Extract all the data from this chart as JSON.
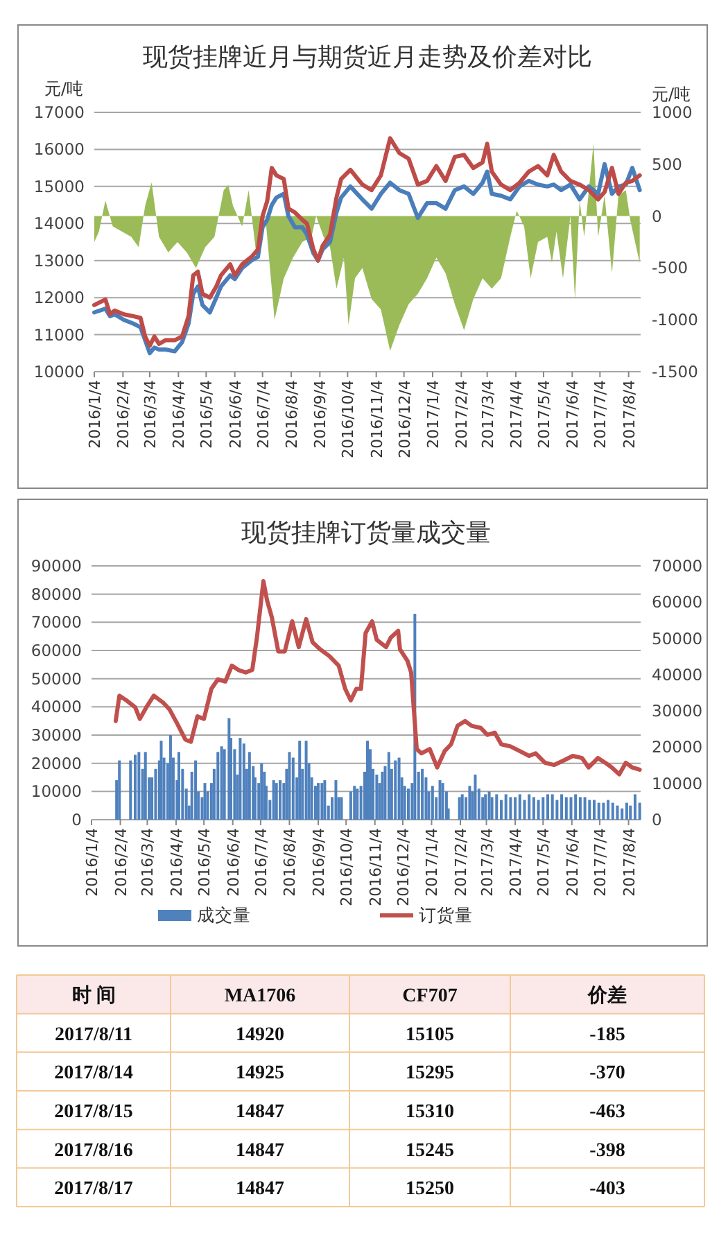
{
  "chart_data": [
    {
      "type": "line",
      "title": "现货挂牌近月与期货近月走势及价差对比",
      "ylabel": "元/吨",
      "y2label": "元/吨",
      "xlim": [
        "2016-01-04",
        "2017-08-17"
      ],
      "xticks": [
        {
          "value": "2016-01-04",
          "label": "2016/1/4"
        },
        {
          "value": "2016-02-04",
          "label": "2016/2/4"
        },
        {
          "value": "2016-03-04",
          "label": "2016/3/4"
        },
        {
          "value": "2016-04-04",
          "label": "2016/4/4"
        },
        {
          "value": "2016-05-04",
          "label": "2016/5/4"
        },
        {
          "value": "2016-06-04",
          "label": "2016/6/4"
        },
        {
          "value": "2016-07-04",
          "label": "2016/7/4"
        },
        {
          "value": "2016-08-04",
          "label": "2016/8/4"
        },
        {
          "value": "2016-09-04",
          "label": "2016/9/4"
        },
        {
          "value": "2016-10-04",
          "label": "2016/10/4"
        },
        {
          "value": "2016-11-04",
          "label": "2016/11/4"
        },
        {
          "value": "2016-12-04",
          "label": "2016/12/4"
        },
        {
          "value": "2017-01-04",
          "label": "2017/1/4"
        },
        {
          "value": "2017-02-04",
          "label": "2017/2/4"
        },
        {
          "value": "2017-03-04",
          "label": "2017/3/4"
        },
        {
          "value": "2017-04-04",
          "label": "2017/4/4"
        },
        {
          "value": "2017-05-04",
          "label": "2017/5/4"
        },
        {
          "value": "2017-06-04",
          "label": "2017/6/4"
        },
        {
          "value": "2017-07-04",
          "label": "2017/7/4"
        },
        {
          "value": "2017-08-04",
          "label": "2017/8/4"
        }
      ],
      "ylim": [
        10000,
        17000
      ],
      "yticks": [
        10000,
        11000,
        12000,
        13000,
        14000,
        15000,
        16000,
        17000
      ],
      "y2lim": [
        -1500,
        1000
      ],
      "y2ticks": [
        -1500,
        -1000,
        -500,
        0,
        500,
        1000
      ],
      "grid": "y",
      "series": [
        {
          "type": "area",
          "axis": "y2",
          "color": "#9bbb59",
          "x": [
            "2016-01-04",
            "2016-01-09",
            "2016-01-16",
            "2016-01-24",
            "2016-02-03",
            "2016-02-13",
            "2016-02-21",
            "2016-02-28",
            "2016-03-06",
            "2016-03-14",
            "2016-03-24",
            "2016-04-03",
            "2016-04-13",
            "2016-04-23",
            "2016-05-03",
            "2016-05-13",
            "2016-05-23",
            "2016-05-28",
            "2016-06-02",
            "2016-06-12",
            "2016-06-19",
            "2016-06-27",
            "2016-07-07",
            "2016-07-17",
            "2016-07-27",
            "2016-08-06",
            "2016-08-16",
            "2016-08-26",
            "2016-08-31",
            "2016-09-08",
            "2016-09-15",
            "2016-09-22",
            "2016-09-30",
            "2016-10-05",
            "2016-10-12",
            "2016-10-20",
            "2016-10-30",
            "2016-11-09",
            "2016-11-19",
            "2016-11-29",
            "2016-12-09",
            "2016-12-19",
            "2016-12-29",
            "2017-01-08",
            "2017-01-18",
            "2017-01-28",
            "2017-02-07",
            "2017-02-17",
            "2017-02-27",
            "2017-03-09",
            "2017-03-19",
            "2017-03-29",
            "2017-04-05",
            "2017-04-13",
            "2017-04-20",
            "2017-04-28",
            "2017-05-08",
            "2017-05-13",
            "2017-05-18",
            "2017-05-25",
            "2017-06-02",
            "2017-06-07",
            "2017-06-12",
            "2017-06-17",
            "2017-06-27",
            "2017-07-02",
            "2017-07-09",
            "2017-07-17",
            "2017-07-24",
            "2017-08-01",
            "2017-08-06",
            "2017-08-16"
          ],
          "values": [
            -250,
            -150,
            150,
            -100,
            -150,
            -200,
            -300,
            100,
            325,
            -200,
            -350,
            -250,
            -350,
            -500,
            -300,
            -200,
            250,
            300,
            100,
            -100,
            250,
            -350,
            0,
            -1000,
            -600,
            -400,
            -250,
            -200,
            0,
            -200,
            -300,
            -700,
            -400,
            -1050,
            -600,
            -500,
            -800,
            -900,
            -1300,
            -1050,
            -850,
            -750,
            -600,
            -400,
            -550,
            -850,
            -1100,
            -800,
            -600,
            -700,
            -600,
            -200,
            50,
            -100,
            -600,
            -250,
            -200,
            -450,
            -150,
            -600,
            0,
            -800,
            150,
            -200,
            700,
            -200,
            200,
            -550,
            200,
            250,
            -50,
            -450
          ]
        },
        {
          "color": "#4a7ebb",
          "x": [
            "2016-01-04",
            "2016-01-16",
            "2016-01-21",
            "2016-01-26",
            "2016-02-05",
            "2016-02-15",
            "2016-02-23",
            "2016-02-28",
            "2016-03-04",
            "2016-03-09",
            "2016-03-14",
            "2016-03-21",
            "2016-03-31",
            "2016-04-08",
            "2016-04-15",
            "2016-04-20",
            "2016-04-25",
            "2016-04-30",
            "2016-05-08",
            "2016-05-15",
            "2016-05-20",
            "2016-05-30",
            "2016-06-04",
            "2016-06-12",
            "2016-06-22",
            "2016-06-29",
            "2016-07-04",
            "2016-07-09",
            "2016-07-14",
            "2016-07-19",
            "2016-07-27",
            "2016-08-01",
            "2016-08-08",
            "2016-08-16",
            "2016-08-21",
            "2016-08-28",
            "2016-09-02",
            "2016-09-07",
            "2016-09-15",
            "2016-09-22",
            "2016-09-27",
            "2016-10-07",
            "2016-10-20",
            "2016-10-30",
            "2016-11-09",
            "2016-11-19",
            "2016-11-29",
            "2016-12-09",
            "2016-12-19",
            "2016-12-29",
            "2017-01-08",
            "2017-01-18",
            "2017-01-28",
            "2017-02-07",
            "2017-02-17",
            "2017-02-27",
            "2017-03-04",
            "2017-03-09",
            "2017-03-19",
            "2017-03-29",
            "2017-04-08",
            "2017-04-18",
            "2017-04-28",
            "2017-05-08",
            "2017-05-15",
            "2017-05-23",
            "2017-06-02",
            "2017-06-12",
            "2017-06-22",
            "2017-07-02",
            "2017-07-09",
            "2017-07-17",
            "2017-07-24",
            "2017-08-01",
            "2017-08-08",
            "2017-08-16"
          ],
          "values": [
            11600,
            11700,
            11500,
            11550,
            11400,
            11300,
            11200,
            10850,
            10500,
            10650,
            10600,
            10600,
            10550,
            10800,
            11300,
            12100,
            12300,
            11800,
            11600,
            12000,
            12300,
            12600,
            12500,
            12800,
            13000,
            13100,
            13900,
            14100,
            14500,
            14700,
            14800,
            14200,
            13900,
            13900,
            13700,
            13200,
            13000,
            13300,
            13500,
            14300,
            14700,
            15000,
            14650,
            14400,
            14800,
            15100,
            14900,
            14800,
            14150,
            14550,
            14550,
            14400,
            14900,
            15000,
            14800,
            15100,
            15400,
            14800,
            14750,
            14650,
            15000,
            15150,
            15050,
            15000,
            15050,
            14900,
            15050,
            14650,
            15000,
            14800,
            15600,
            14800,
            15000,
            15050,
            15500,
            14900
          ]
        },
        {
          "color": "#be4b48",
          "x": [
            "2016-01-04",
            "2016-01-16",
            "2016-01-21",
            "2016-01-26",
            "2016-02-05",
            "2016-02-15",
            "2016-02-23",
            "2016-02-28",
            "2016-03-04",
            "2016-03-09",
            "2016-03-14",
            "2016-03-21",
            "2016-03-31",
            "2016-04-08",
            "2016-04-15",
            "2016-04-20",
            "2016-04-25",
            "2016-04-30",
            "2016-05-08",
            "2016-05-15",
            "2016-05-20",
            "2016-05-30",
            "2016-06-04",
            "2016-06-12",
            "2016-06-22",
            "2016-06-29",
            "2016-07-04",
            "2016-07-09",
            "2016-07-14",
            "2016-07-19",
            "2016-07-27",
            "2016-08-01",
            "2016-08-08",
            "2016-08-16",
            "2016-08-21",
            "2016-08-28",
            "2016-09-02",
            "2016-09-07",
            "2016-09-15",
            "2016-09-22",
            "2016-09-27",
            "2016-10-07",
            "2016-10-20",
            "2016-10-30",
            "2016-11-09",
            "2016-11-19",
            "2016-11-29",
            "2016-12-09",
            "2016-12-19",
            "2016-12-29",
            "2017-01-08",
            "2017-01-18",
            "2017-01-28",
            "2017-02-07",
            "2017-02-17",
            "2017-02-27",
            "2017-03-04",
            "2017-03-09",
            "2017-03-19",
            "2017-03-29",
            "2017-04-08",
            "2017-04-18",
            "2017-04-28",
            "2017-05-08",
            "2017-05-15",
            "2017-05-23",
            "2017-06-02",
            "2017-06-12",
            "2017-06-22",
            "2017-07-02",
            "2017-07-09",
            "2017-07-17",
            "2017-07-24",
            "2017-08-01",
            "2017-08-08",
            "2017-08-16"
          ],
          "values": [
            11800,
            11950,
            11550,
            11650,
            11550,
            11500,
            11450,
            10950,
            10700,
            10950,
            10750,
            10850,
            10850,
            10950,
            11500,
            12600,
            12700,
            12100,
            12000,
            12300,
            12600,
            12900,
            12600,
            12900,
            13100,
            13300,
            14200,
            14600,
            15500,
            15300,
            15200,
            14400,
            14300,
            14100,
            14000,
            13300,
            13000,
            13400,
            13700,
            14700,
            15200,
            15450,
            15050,
            14900,
            15300,
            16300,
            15900,
            15750,
            15050,
            15150,
            15550,
            15150,
            15800,
            15850,
            15500,
            15650,
            16150,
            15400,
            15050,
            14900,
            15100,
            15400,
            15550,
            15300,
            15850,
            15400,
            15150,
            15050,
            14900,
            14650,
            14850,
            15500,
            14800,
            15100,
            15150,
            15300
          ]
        }
      ]
    },
    {
      "type": "bar",
      "title": "现货挂牌订货量成交量",
      "xlim": [
        "2016-01-04",
        "2017-08-17"
      ],
      "xticks": [
        {
          "value": "2016-01-04",
          "label": "2016/1/4"
        },
        {
          "value": "2016-02-04",
          "label": "2016/2/4"
        },
        {
          "value": "2016-03-04",
          "label": "2016/3/4"
        },
        {
          "value": "2016-04-04",
          "label": "2016/4/4"
        },
        {
          "value": "2016-05-04",
          "label": "2016/5/4"
        },
        {
          "value": "2016-06-04",
          "label": "2016/6/4"
        },
        {
          "value": "2016-07-04",
          "label": "2016/7/4"
        },
        {
          "value": "2016-08-04",
          "label": "2016/8/4"
        },
        {
          "value": "2016-09-04",
          "label": "2016/9/4"
        },
        {
          "value": "2016-10-04",
          "label": "2016/10/4"
        },
        {
          "value": "2016-11-04",
          "label": "2016/11/4"
        },
        {
          "value": "2016-12-04",
          "label": "2016/12/4"
        },
        {
          "value": "2017-01-04",
          "label": "2017/1/4"
        },
        {
          "value": "2017-02-04",
          "label": "2017/2/4"
        },
        {
          "value": "2017-03-04",
          "label": "2017/3/4"
        },
        {
          "value": "2017-04-04",
          "label": "2017/4/4"
        },
        {
          "value": "2017-05-04",
          "label": "2017/5/4"
        },
        {
          "value": "2017-06-04",
          "label": "2017/6/4"
        },
        {
          "value": "2017-07-04",
          "label": "2017/7/4"
        },
        {
          "value": "2017-08-04",
          "label": "2017/8/4"
        }
      ],
      "ylim": [
        0,
        90000
      ],
      "yticks": [
        0,
        10000,
        20000,
        30000,
        40000,
        50000,
        60000,
        70000,
        80000,
        90000
      ],
      "y2lim": [
        0,
        70000
      ],
      "y2ticks": [
        0,
        10000,
        20000,
        30000,
        40000,
        50000,
        60000,
        70000
      ],
      "grid": "y",
      "legend": "bottom",
      "series": [
        {
          "name": "成交量",
          "type": "bar",
          "color": "#4f81bd",
          "x": [
            "2016-01-31",
            "2016-02-03",
            "2016-02-15",
            "2016-02-20",
            "2016-02-24",
            "2016-02-28",
            "2016-03-02",
            "2016-03-06",
            "2016-03-09",
            "2016-03-13",
            "2016-03-17",
            "2016-03-19",
            "2016-03-22",
            "2016-03-26",
            "2016-03-29",
            "2016-04-01",
            "2016-04-05",
            "2016-04-07",
            "2016-04-11",
            "2016-04-15",
            "2016-04-18",
            "2016-04-21",
            "2016-04-25",
            "2016-04-28",
            "2016-05-02",
            "2016-05-05",
            "2016-05-08",
            "2016-05-12",
            "2016-05-15",
            "2016-05-19",
            "2016-05-23",
            "2016-05-26",
            "2016-05-31",
            "2016-06-02",
            "2016-06-06",
            "2016-06-09",
            "2016-06-12",
            "2016-06-16",
            "2016-06-19",
            "2016-06-22",
            "2016-06-26",
            "2016-06-28",
            "2016-07-02",
            "2016-07-05",
            "2016-07-08",
            "2016-07-10",
            "2016-07-14",
            "2016-07-18",
            "2016-07-21",
            "2016-07-25",
            "2016-07-29",
            "2016-08-01",
            "2016-08-04",
            "2016-08-08",
            "2016-08-12",
            "2016-08-15",
            "2016-08-18",
            "2016-08-22",
            "2016-08-25",
            "2016-08-28",
            "2016-09-01",
            "2016-09-04",
            "2016-09-08",
            "2016-09-11",
            "2016-09-15",
            "2016-09-19",
            "2016-09-23",
            "2016-09-26",
            "2016-09-29",
            "2016-10-09",
            "2016-10-13",
            "2016-10-16",
            "2016-10-20",
            "2016-10-24",
            "2016-10-27",
            "2016-10-30",
            "2016-11-02",
            "2016-11-06",
            "2016-11-09",
            "2016-11-12",
            "2016-11-15",
            "2016-11-19",
            "2016-11-22",
            "2016-11-26",
            "2016-11-30",
            "2016-12-03",
            "2016-12-06",
            "2016-12-10",
            "2016-12-14",
            "2016-12-17",
            "2016-12-21",
            "2016-12-25",
            "2016-12-29",
            "2017-01-01",
            "2017-01-05",
            "2017-01-09",
            "2017-01-13",
            "2017-01-16",
            "2017-01-20",
            "2017-01-22",
            "2017-02-03",
            "2017-02-06",
            "2017-02-10",
            "2017-02-14",
            "2017-02-17",
            "2017-02-20",
            "2017-02-24",
            "2017-02-28",
            "2017-03-03",
            "2017-03-07",
            "2017-03-10",
            "2017-03-15",
            "2017-03-20",
            "2017-03-25",
            "2017-03-30",
            "2017-04-04",
            "2017-04-09",
            "2017-04-14",
            "2017-04-19",
            "2017-04-24",
            "2017-04-29",
            "2017-05-04",
            "2017-05-09",
            "2017-05-14",
            "2017-05-19",
            "2017-05-24",
            "2017-05-29",
            "2017-06-03",
            "2017-06-08",
            "2017-06-13",
            "2017-06-18",
            "2017-06-23",
            "2017-06-28",
            "2017-07-03",
            "2017-07-08",
            "2017-07-13",
            "2017-07-18",
            "2017-07-23",
            "2017-07-28",
            "2017-08-02",
            "2017-08-06",
            "2017-08-11",
            "2017-08-16"
          ],
          "values": [
            14000,
            21000,
            21000,
            23000,
            24000,
            18000,
            24000,
            15000,
            15000,
            18000,
            21000,
            28000,
            22000,
            20000,
            30000,
            22000,
            14000,
            24000,
            18000,
            11000,
            5000,
            17000,
            21000,
            10000,
            8000,
            13000,
            10000,
            13000,
            18000,
            24000,
            26000,
            25000,
            36000,
            29000,
            25000,
            16000,
            29000,
            27000,
            18000,
            24000,
            19000,
            15000,
            13000,
            20000,
            17000,
            12000,
            7000,
            14000,
            13000,
            14000,
            13000,
            18000,
            24000,
            22000,
            15000,
            28000,
            18000,
            28000,
            20000,
            15000,
            12000,
            13000,
            13000,
            14000,
            5000,
            8000,
            14000,
            8000,
            8000,
            10000,
            12000,
            11000,
            12000,
            17000,
            28000,
            25000,
            18000,
            16000,
            13000,
            17000,
            19000,
            24000,
            18000,
            21000,
            22000,
            15000,
            12000,
            11000,
            13000,
            73000,
            17000,
            18000,
            15000,
            10000,
            12000,
            8000,
            14000,
            13000,
            10000,
            4000,
            8000,
            9000,
            8000,
            12000,
            10000,
            16000,
            11000,
            8000,
            9000,
            10000,
            8000,
            9000,
            7000,
            9000,
            8000,
            8000,
            9000,
            7000,
            9000,
            8000,
            7000,
            8000,
            9000,
            9000,
            7000,
            9000,
            8000,
            8000,
            9000,
            8000,
            8000,
            7000,
            7000,
            6000,
            6000,
            7000,
            6000,
            5000,
            4000,
            6000,
            5000,
            9000,
            6000
          ]
        },
        {
          "name": "订货量",
          "type": "line",
          "axis": "y2",
          "color": "#c0504d",
          "x": [
            "2016-01-30",
            "2016-02-03",
            "2016-02-10",
            "2016-02-20",
            "2016-02-25",
            "2016-03-03",
            "2016-03-11",
            "2016-03-21",
            "2016-03-28",
            "2016-04-05",
            "2016-04-14",
            "2016-04-20",
            "2016-04-27",
            "2016-05-04",
            "2016-05-12",
            "2016-05-19",
            "2016-05-27",
            "2016-06-03",
            "2016-06-10",
            "2016-06-18",
            "2016-06-25",
            "2016-06-30",
            "2016-07-07",
            "2016-07-11",
            "2016-07-16",
            "2016-07-23",
            "2016-07-30",
            "2016-08-07",
            "2016-08-14",
            "2016-08-22",
            "2016-08-29",
            "2016-09-06",
            "2016-09-16",
            "2016-09-26",
            "2016-10-03",
            "2016-10-09",
            "2016-10-15",
            "2016-10-20",
            "2016-10-25",
            "2016-11-01",
            "2016-11-06",
            "2016-11-16",
            "2016-11-21",
            "2016-11-29",
            "2016-12-01",
            "2016-12-09",
            "2016-12-13",
            "2016-12-19",
            "2016-12-24",
            "2017-01-02",
            "2017-01-10",
            "2017-01-18",
            "2017-01-25",
            "2017-02-01",
            "2017-02-09",
            "2017-02-16",
            "2017-02-26",
            "2017-03-05",
            "2017-03-13",
            "2017-03-20",
            "2017-03-30",
            "2017-04-09",
            "2017-04-19",
            "2017-04-26",
            "2017-05-06",
            "2017-05-16",
            "2017-05-26",
            "2017-06-05",
            "2017-06-15",
            "2017-06-22",
            "2017-07-02",
            "2017-07-10",
            "2017-07-17",
            "2017-07-25",
            "2017-08-01",
            "2017-08-08",
            "2017-08-16"
          ],
          "values": [
            27200,
            34200,
            33000,
            31000,
            27800,
            31000,
            34200,
            32300,
            30400,
            26600,
            22100,
            21500,
            28500,
            27800,
            36100,
            38700,
            38100,
            42500,
            41300,
            40600,
            41300,
            50200,
            65800,
            60400,
            55900,
            46400,
            46400,
            54700,
            47600,
            55300,
            48900,
            47000,
            45100,
            42500,
            36100,
            32900,
            36100,
            36100,
            51500,
            54700,
            49600,
            47600,
            50200,
            52100,
            47000,
            43800,
            40600,
            19500,
            18300,
            19500,
            14400,
            18900,
            20800,
            25900,
            27200,
            25900,
            25300,
            23400,
            24000,
            20800,
            20200,
            18900,
            17600,
            18300,
            15700,
            15100,
            16300,
            17600,
            17000,
            14400,
            17000,
            15700,
            14400,
            12500,
            15700,
            14400,
            13800
          ]
        }
      ]
    },
    {
      "type": "other",
      "xlabel": "时 间",
      "categories": [
        "2017/8/11",
        "2017/8/14",
        "2017/8/15",
        "2017/8/16",
        "2017/8/17"
      ],
      "data_labels": true,
      "series": [
        {
          "name": "MA1706",
          "values": [
            14920,
            14925,
            14847,
            14847,
            14847
          ]
        },
        {
          "name": "CF707",
          "values": [
            15105,
            15295,
            15310,
            15245,
            15250
          ]
        },
        {
          "name": "价差",
          "values": [
            -185,
            -370,
            -463,
            -398,
            -403
          ]
        }
      ]
    }
  ]
}
